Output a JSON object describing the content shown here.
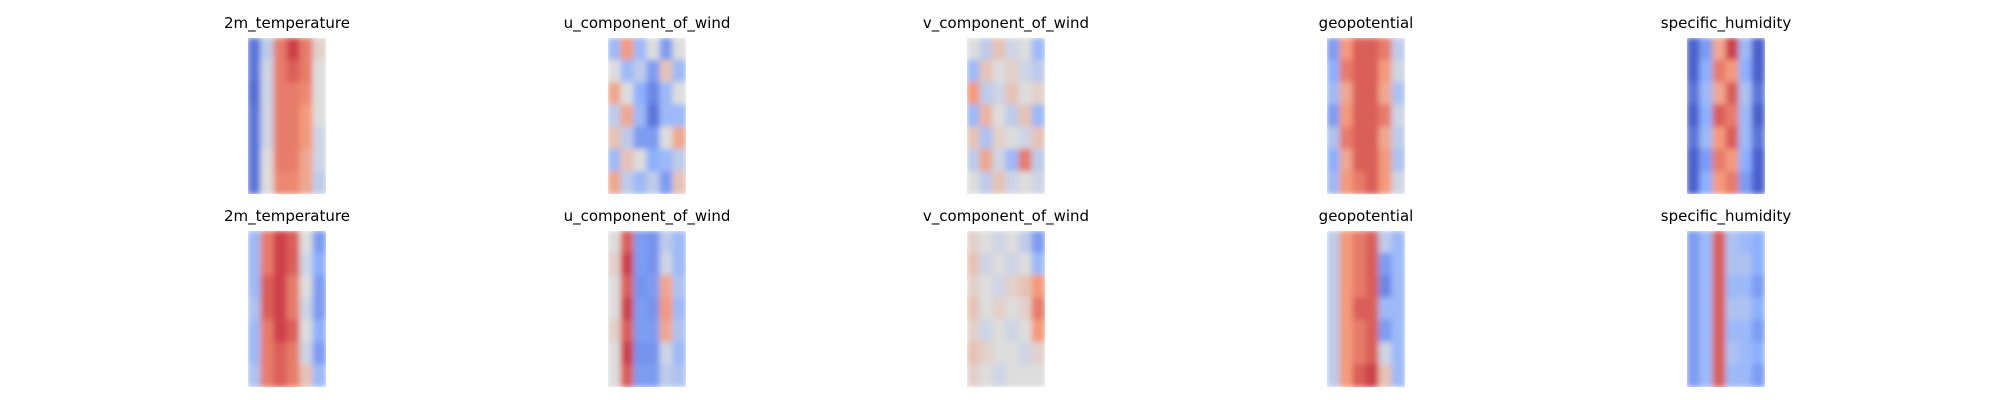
{
  "chart_data": {
    "type": "heatmap",
    "colormap": "coolwarm",
    "colormap_stops": [
      "#3b4cc0",
      "#8db0fe",
      "#dddddd",
      "#f49a7b",
      "#b40426"
    ],
    "axes_visible": false,
    "rows": [
      {
        "panels": [
          {
            "title": "2m_temperature",
            "grid": [
              [
                0.1,
                0.4,
                0.8,
                0.9,
                0.8,
                0.55
              ],
              [
                0.1,
                0.45,
                0.8,
                0.85,
                0.8,
                0.5
              ],
              [
                0.08,
                0.45,
                0.8,
                0.8,
                0.78,
                0.5
              ],
              [
                0.1,
                0.45,
                0.8,
                0.8,
                0.75,
                0.5
              ],
              [
                0.1,
                0.45,
                0.8,
                0.8,
                0.75,
                0.45
              ],
              [
                0.1,
                0.5,
                0.8,
                0.8,
                0.7,
                0.45
              ],
              [
                0.1,
                0.5,
                0.78,
                0.78,
                0.7,
                0.4
              ]
            ]
          },
          {
            "title": "u_component_of_wind",
            "grid": [
              [
                0.3,
                0.75,
                0.3,
                0.5,
                0.2,
                0.5
              ],
              [
                0.5,
                0.3,
                0.4,
                0.2,
                0.6,
                0.3
              ],
              [
                0.7,
                0.5,
                0.25,
                0.15,
                0.3,
                0.5
              ],
              [
                0.4,
                0.7,
                0.3,
                0.1,
                0.3,
                0.3
              ],
              [
                0.6,
                0.4,
                0.2,
                0.2,
                0.5,
                0.7
              ],
              [
                0.3,
                0.6,
                0.5,
                0.25,
                0.3,
                0.4
              ],
              [
                0.7,
                0.4,
                0.3,
                0.4,
                0.2,
                0.6
              ]
            ]
          },
          {
            "title": "v_component_of_wind",
            "grid": [
              [
                0.5,
                0.4,
                0.6,
                0.45,
                0.5,
                0.3
              ],
              [
                0.3,
                0.6,
                0.5,
                0.55,
                0.45,
                0.4
              ],
              [
                0.75,
                0.4,
                0.45,
                0.6,
                0.5,
                0.55
              ],
              [
                0.3,
                0.65,
                0.5,
                0.4,
                0.6,
                0.3
              ],
              [
                0.6,
                0.35,
                0.55,
                0.5,
                0.45,
                0.6
              ],
              [
                0.4,
                0.7,
                0.45,
                0.3,
                0.8,
                0.4
              ],
              [
                0.5,
                0.4,
                0.6,
                0.45,
                0.5,
                0.45
              ]
            ]
          },
          {
            "title": "geopotential",
            "grid": [
              [
                0.2,
                0.75,
                0.85,
                0.85,
                0.8,
                0.4
              ],
              [
                0.25,
                0.8,
                0.85,
                0.85,
                0.75,
                0.45
              ],
              [
                0.3,
                0.7,
                0.85,
                0.85,
                0.7,
                0.35
              ],
              [
                0.2,
                0.75,
                0.85,
                0.85,
                0.8,
                0.45
              ],
              [
                0.35,
                0.8,
                0.85,
                0.85,
                0.7,
                0.4
              ],
              [
                0.25,
                0.7,
                0.85,
                0.85,
                0.75,
                0.35
              ],
              [
                0.3,
                0.75,
                0.8,
                0.85,
                0.75,
                0.45
              ]
            ]
          },
          {
            "title": "specific_humidity",
            "grid": [
              [
                0.05,
                0.2,
                0.7,
                0.9,
                0.3,
                0.05
              ],
              [
                0.05,
                0.25,
                0.8,
                0.75,
                0.25,
                0.05
              ],
              [
                0.1,
                0.3,
                0.7,
                0.85,
                0.35,
                0.1
              ],
              [
                0.05,
                0.25,
                0.85,
                0.8,
                0.3,
                0.05
              ],
              [
                0.1,
                0.3,
                0.75,
                0.85,
                0.3,
                0.1
              ],
              [
                0.05,
                0.2,
                0.8,
                0.75,
                0.25,
                0.05
              ],
              [
                0.05,
                0.25,
                0.75,
                0.8,
                0.2,
                0.05
              ]
            ]
          }
        ]
      },
      {
        "panels": [
          {
            "title": "2m_temperature",
            "grid": [
              [
                0.3,
                0.8,
                0.9,
                0.85,
                0.5,
                0.2
              ],
              [
                0.3,
                0.8,
                0.9,
                0.85,
                0.45,
                0.25
              ],
              [
                0.3,
                0.85,
                0.9,
                0.8,
                0.5,
                0.2
              ],
              [
                0.35,
                0.85,
                0.9,
                0.8,
                0.45,
                0.2
              ],
              [
                0.3,
                0.8,
                0.9,
                0.85,
                0.5,
                0.25
              ],
              [
                0.3,
                0.8,
                0.85,
                0.8,
                0.45,
                0.2
              ],
              [
                0.35,
                0.8,
                0.85,
                0.8,
                0.6,
                0.3
              ]
            ]
          },
          {
            "title": "u_component_of_wind",
            "grid": [
              [
                0.5,
                0.85,
                0.2,
                0.18,
                0.4,
                0.3
              ],
              [
                0.55,
                0.9,
                0.2,
                0.18,
                0.45,
                0.3
              ],
              [
                0.5,
                0.85,
                0.18,
                0.2,
                0.7,
                0.35
              ],
              [
                0.5,
                0.9,
                0.2,
                0.18,
                0.75,
                0.3
              ],
              [
                0.55,
                0.85,
                0.2,
                0.2,
                0.7,
                0.35
              ],
              [
                0.5,
                0.9,
                0.18,
                0.18,
                0.45,
                0.3
              ],
              [
                0.5,
                0.85,
                0.2,
                0.2,
                0.4,
                0.35
              ]
            ]
          },
          {
            "title": "v_component_of_wind",
            "grid": [
              [
                0.55,
                0.5,
                0.45,
                0.5,
                0.4,
                0.2
              ],
              [
                0.6,
                0.45,
                0.5,
                0.45,
                0.5,
                0.3
              ],
              [
                0.55,
                0.5,
                0.45,
                0.55,
                0.6,
                0.75
              ],
              [
                0.6,
                0.5,
                0.55,
                0.5,
                0.55,
                0.8
              ],
              [
                0.55,
                0.45,
                0.5,
                0.45,
                0.5,
                0.75
              ],
              [
                0.6,
                0.55,
                0.5,
                0.5,
                0.45,
                0.55
              ],
              [
                0.55,
                0.5,
                0.45,
                0.5,
                0.5,
                0.5
              ]
            ]
          },
          {
            "title": "geopotential",
            "grid": [
              [
                0.4,
                0.75,
                0.8,
                0.85,
                0.4,
                0.3
              ],
              [
                0.4,
                0.75,
                0.8,
                0.85,
                0.2,
                0.3
              ],
              [
                0.4,
                0.75,
                0.8,
                0.85,
                0.15,
                0.3
              ],
              [
                0.4,
                0.75,
                0.85,
                0.85,
                0.3,
                0.3
              ],
              [
                0.4,
                0.75,
                0.8,
                0.85,
                0.2,
                0.3
              ],
              [
                0.4,
                0.75,
                0.8,
                0.85,
                0.45,
                0.3
              ],
              [
                0.4,
                0.75,
                0.85,
                0.9,
                0.6,
                0.3
              ]
            ]
          },
          {
            "title": "specific_humidity",
            "grid": [
              [
                0.2,
                0.3,
                0.85,
                0.35,
                0.3,
                0.25
              ],
              [
                0.2,
                0.3,
                0.85,
                0.35,
                0.35,
                0.25
              ],
              [
                0.2,
                0.3,
                0.85,
                0.3,
                0.3,
                0.2
              ],
              [
                0.2,
                0.3,
                0.85,
                0.35,
                0.35,
                0.25
              ],
              [
                0.2,
                0.3,
                0.85,
                0.3,
                0.3,
                0.2
              ],
              [
                0.2,
                0.3,
                0.85,
                0.35,
                0.3,
                0.25
              ],
              [
                0.2,
                0.3,
                0.85,
                0.3,
                0.3,
                0.2
              ]
            ]
          }
        ]
      }
    ]
  }
}
